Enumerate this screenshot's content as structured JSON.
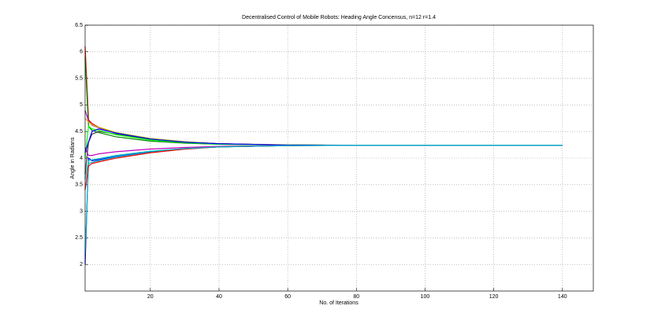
{
  "chart_data": {
    "type": "line",
    "title": "Decentralised Control of Mobile Robots: Heading Angle Concensus, n=12 r=1.4",
    "x_label": "No. of Iterations",
    "y_label": "Angle in Radians",
    "x": [
      1,
      2,
      3,
      5,
      10,
      20,
      30,
      40,
      60,
      80,
      100,
      120,
      140
    ],
    "series": [
      {
        "color": "#ff0000",
        "values": [
          6.1,
          4.72,
          4.65,
          4.58,
          4.48,
          4.36,
          4.3,
          4.27,
          4.245,
          4.24,
          4.24,
          4.24,
          4.24
        ]
      },
      {
        "color": "#008000",
        "values": [
          5.9,
          4.6,
          4.52,
          4.48,
          4.4,
          4.32,
          4.28,
          4.26,
          4.245,
          4.24,
          4.24,
          4.24,
          4.24
        ]
      },
      {
        "color": "#bf00bf",
        "values": [
          4.9,
          4.7,
          4.62,
          4.57,
          4.47,
          4.36,
          4.3,
          4.27,
          4.245,
          4.24,
          4.24,
          4.24,
          4.24
        ]
      },
      {
        "color": "#bfbf00",
        "values": [
          4.75,
          4.68,
          4.63,
          4.58,
          4.48,
          4.37,
          4.31,
          4.27,
          4.25,
          4.24,
          4.24,
          4.24,
          4.24
        ]
      },
      {
        "color": "#0000ff",
        "values": [
          2.0,
          4.0,
          3.95,
          3.97,
          4.03,
          4.12,
          4.18,
          4.21,
          4.235,
          4.24,
          4.24,
          4.24,
          4.24
        ]
      },
      {
        "color": "#00bfbf",
        "values": [
          2.2,
          3.9,
          3.92,
          3.95,
          4.02,
          4.11,
          4.17,
          4.21,
          4.235,
          4.24,
          4.24,
          4.24,
          4.24
        ]
      },
      {
        "color": "#ff0000",
        "values": [
          3.4,
          3.85,
          3.9,
          3.93,
          4.0,
          4.1,
          4.17,
          4.21,
          4.235,
          4.24,
          4.24,
          4.24,
          4.24
        ]
      },
      {
        "color": "#404040",
        "values": [
          3.7,
          4.3,
          4.45,
          4.5,
          4.45,
          4.35,
          4.3,
          4.27,
          4.245,
          4.24,
          4.24,
          4.24,
          4.24
        ]
      },
      {
        "color": "#00ff00",
        "values": [
          4.0,
          4.6,
          4.55,
          4.52,
          4.44,
          4.34,
          4.29,
          4.26,
          4.245,
          4.24,
          4.24,
          4.24,
          4.24
        ]
      },
      {
        "color": "#bf00bf",
        "values": [
          4.2,
          4.05,
          4.05,
          4.08,
          4.12,
          4.17,
          4.2,
          4.22,
          4.237,
          4.24,
          4.24,
          4.24,
          4.24
        ]
      },
      {
        "color": "#0000ff",
        "values": [
          4.1,
          4.3,
          4.5,
          4.55,
          4.47,
          4.36,
          4.3,
          4.27,
          4.245,
          4.24,
          4.24,
          4.24,
          4.24
        ]
      },
      {
        "color": "#00bfbf",
        "values": [
          3.6,
          3.95,
          3.97,
          3.99,
          4.05,
          4.13,
          4.18,
          4.21,
          4.235,
          4.24,
          4.24,
          4.24,
          4.24
        ]
      }
    ],
    "xlim": [
      1,
      149
    ],
    "xticks": [
      20,
      40,
      60,
      80,
      100,
      120,
      140
    ],
    "ylim": [
      1.5,
      6.5
    ],
    "yticks": [
      2,
      2.5,
      3,
      3.5,
      4,
      4.5,
      5,
      5.5,
      6,
      6.5
    ],
    "grid": true
  }
}
